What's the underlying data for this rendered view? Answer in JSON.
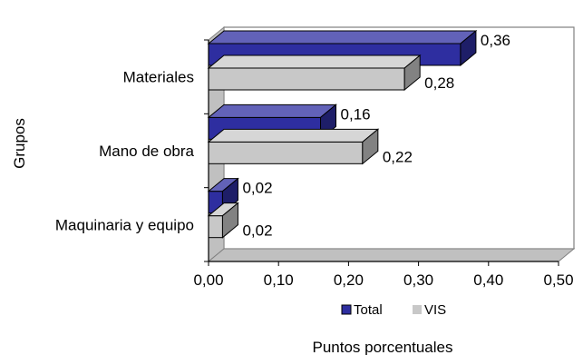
{
  "chart_data": {
    "type": "bar",
    "orientation": "horizontal",
    "three_d": true,
    "categories": [
      "Materiales",
      "Mano de obra",
      "Maquinaria y equipo"
    ],
    "series": [
      {
        "name": "Total",
        "values": [
          0.36,
          0.16,
          0.02
        ],
        "labels": [
          "0,36",
          "0,16",
          "0,02"
        ],
        "color": "#2e2ea0"
      },
      {
        "name": "VIS",
        "values": [
          0.28,
          0.22,
          0.02
        ],
        "labels": [
          "0,28",
          "0,22",
          "0,02"
        ],
        "color": "#c8c8c8"
      }
    ],
    "xlabel": "Puntos porcentuales",
    "ylabel": "Grupos",
    "xlim": [
      0,
      0.5
    ],
    "xticks": [
      0,
      0.1,
      0.2,
      0.3,
      0.4,
      0.5
    ],
    "xtick_labels": [
      "0,00",
      "0,10",
      "0,20",
      "0,30",
      "0,40",
      "0,50"
    ],
    "grid": false,
    "legend_position": "bottom"
  }
}
